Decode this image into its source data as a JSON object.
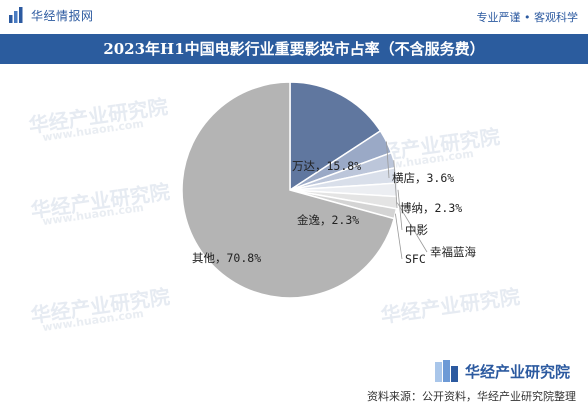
{
  "header": {
    "brand": "华经情报网",
    "slogan": "专业严谨 • 客观科学"
  },
  "watermark": {
    "text": "华经产业研究院",
    "url": "www.huaon.com"
  },
  "chart_data": {
    "type": "pie",
    "title": "2023年H1中国电影行业重要影投市占率（不含服务费）",
    "unit": "%",
    "slices": [
      {
        "name": "万达",
        "value": 15.8,
        "label": "万达，15.8%",
        "color": "#60779f"
      },
      {
        "name": "横店",
        "value": 3.6,
        "label": "横店，3.6%",
        "color": "#9aa9c6"
      },
      {
        "name": "博纳",
        "value": 2.3,
        "label": "博纳，2.3%",
        "color": "#bcc6da"
      },
      {
        "name": "金逸",
        "value": 2.3,
        "label": "金逸，2.3%",
        "color": "#d9dfea"
      },
      {
        "name": "中影",
        "value": 2.0,
        "label": "中影",
        "color": "#eceef2"
      },
      {
        "name": "幸福蓝海",
        "value": 1.8,
        "label": "幸福蓝海",
        "color": "#e4e4e4"
      },
      {
        "name": "SFC",
        "value": 1.5,
        "label": "SFC",
        "color": "#d4d4d4"
      },
      {
        "name": "其他",
        "value": 70.8,
        "label": "其他，70.8%",
        "color": "#b4b4b4"
      }
    ]
  },
  "footer": {
    "logo_text": "华经产业研究院",
    "source": "资料来源：公开资料，华经产业研究院整理"
  }
}
